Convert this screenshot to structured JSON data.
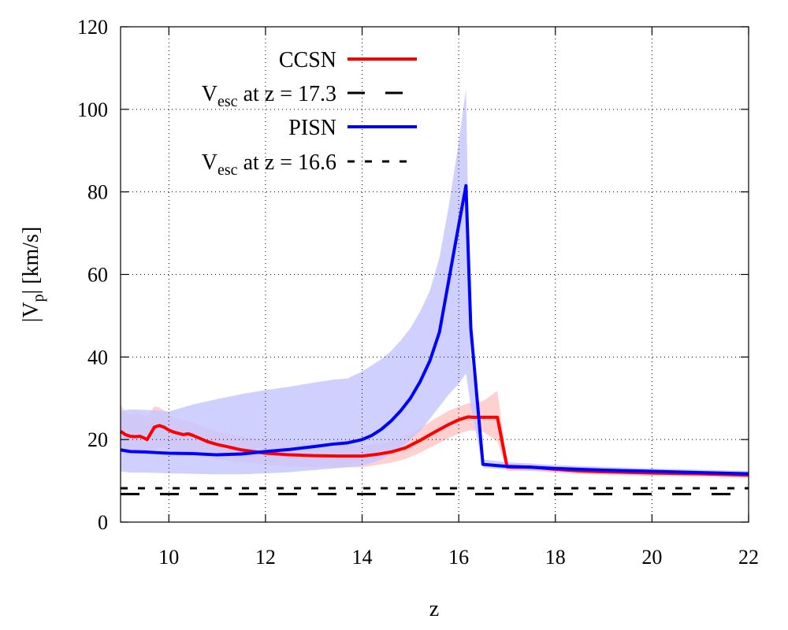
{
  "chart_data": {
    "type": "line",
    "xlabel": "z",
    "ylabel": {
      "base": "|V",
      "sub": "p",
      "rest": "| [km/s]"
    },
    "xlim": [
      9,
      22
    ],
    "ylim": [
      0,
      120
    ],
    "xticks": [
      10,
      12,
      14,
      16,
      18,
      20,
      22
    ],
    "yticks": [
      0,
      20,
      40,
      60,
      80,
      100,
      120
    ],
    "legend_position": "top-center",
    "series": [
      {
        "name": "CCSN",
        "legend": {
          "base": "CCSN",
          "sub": "",
          "rest": ""
        },
        "style": "solid",
        "color": "#ff0000",
        "band_color": "#ffc8c8",
        "x": [
          9.0,
          9.1,
          9.2,
          9.3,
          9.4,
          9.5,
          9.55,
          9.6,
          9.7,
          9.8,
          9.9,
          10.0,
          10.1,
          10.2,
          10.3,
          10.4,
          10.5,
          10.6,
          10.8,
          11.0,
          11.2,
          11.5,
          12.0,
          12.5,
          13.0,
          13.5,
          14.0,
          14.3,
          14.6,
          14.9,
          15.2,
          15.5,
          15.8,
          16.0,
          16.2,
          16.3,
          16.5,
          16.8,
          17.0,
          17.1,
          17.5,
          18.0,
          18.5,
          19.0,
          20.0,
          21.0,
          22.0
        ],
        "y": [
          22.0,
          21.2,
          20.8,
          20.7,
          20.8,
          20.3,
          20.0,
          21.0,
          23.0,
          23.4,
          23.0,
          22.3,
          21.8,
          21.5,
          21.2,
          21.4,
          21.0,
          20.5,
          19.5,
          18.8,
          18.3,
          17.5,
          16.7,
          16.3,
          16.1,
          16.0,
          16.0,
          16.4,
          17.0,
          18.0,
          19.8,
          21.8,
          23.7,
          24.8,
          25.5,
          25.4,
          25.4,
          25.4,
          13.4,
          13.3,
          13.3,
          12.8,
          12.4,
          12.2,
          11.9,
          11.7,
          11.4
        ],
        "upper": [
          28.5,
          26.5,
          26.0,
          26.5,
          26.2,
          25.8,
          25.6,
          26.5,
          28.0,
          27.8,
          27.0,
          26.0,
          25.5,
          25.0,
          24.6,
          24.6,
          24.2,
          23.6,
          22.8,
          22.0,
          21.5,
          20.8,
          20.0,
          19.6,
          19.2,
          18.9,
          18.6,
          18.9,
          19.7,
          20.8,
          22.8,
          25.0,
          27.0,
          28.0,
          28.8,
          28.8,
          29.3,
          31.8,
          14.4,
          14.2,
          14.2,
          13.6,
          13.2,
          12.9,
          12.6,
          12.4,
          12.1
        ],
        "lower": [
          16.5,
          16.5,
          16.5,
          16.5,
          16.6,
          16.4,
          16.2,
          16.6,
          17.6,
          18.0,
          18.0,
          17.6,
          17.4,
          17.2,
          17.0,
          17.0,
          16.8,
          16.5,
          15.8,
          15.3,
          14.9,
          14.4,
          13.9,
          13.5,
          13.3,
          13.2,
          13.3,
          13.8,
          14.4,
          15.3,
          16.8,
          18.6,
          20.4,
          21.4,
          22.2,
          22.2,
          21.9,
          19.6,
          12.4,
          12.4,
          12.4,
          12.0,
          11.7,
          11.5,
          11.2,
          11.0,
          10.7
        ]
      },
      {
        "name": "Vesc at z = 17.3",
        "legend": {
          "base": "V",
          "sub": "esc",
          "rest": " at z = 17.3"
        },
        "style": "long-dash",
        "color": "#000000",
        "x": [
          9.0,
          22.0
        ],
        "y": [
          6.8,
          6.8
        ]
      },
      {
        "name": "PISN",
        "legend": {
          "base": "PISN",
          "sub": "",
          "rest": ""
        },
        "style": "solid",
        "color": "#0000ff",
        "band_color": "#c8c8ff",
        "x": [
          9.0,
          9.2,
          9.5,
          9.8,
          10.0,
          10.5,
          11.0,
          11.5,
          12.0,
          12.5,
          13.0,
          13.4,
          13.7,
          14.0,
          14.2,
          14.4,
          14.6,
          14.8,
          15.0,
          15.2,
          15.4,
          15.6,
          15.8,
          16.0,
          16.15,
          16.25,
          16.5,
          17.0,
          17.5,
          18.0,
          19.0,
          20.0,
          21.0,
          22.0
        ],
        "y": [
          17.5,
          17.1,
          17.0,
          16.8,
          16.7,
          16.6,
          16.3,
          16.5,
          17.1,
          17.6,
          18.3,
          18.9,
          19.2,
          20.0,
          21.0,
          22.5,
          24.5,
          27.0,
          30.0,
          34.0,
          39.0,
          46.0,
          59.0,
          72.0,
          81.5,
          47.0,
          14.0,
          13.5,
          13.3,
          13.0,
          12.6,
          12.3,
          12.0,
          11.7
        ],
        "upper": [
          27.0,
          27.3,
          27.2,
          27.0,
          26.8,
          28.5,
          29.8,
          31.0,
          32.0,
          32.8,
          33.8,
          34.5,
          34.8,
          36.5,
          38.0,
          39.5,
          41.5,
          44.0,
          47.0,
          51.0,
          56.0,
          64.0,
          77.0,
          92.0,
          105.0,
          40.0,
          15.2,
          14.5,
          14.2,
          13.8,
          13.4,
          13.0,
          12.7,
          12.4
        ],
        "lower": [
          12.3,
          12.0,
          12.0,
          11.9,
          11.8,
          11.7,
          11.6,
          11.6,
          11.8,
          12.1,
          12.6,
          13.0,
          13.3,
          13.7,
          14.3,
          15.2,
          16.5,
          18.0,
          20.0,
          22.0,
          25.0,
          28.0,
          31.0,
          33.5,
          36.0,
          28.0,
          13.2,
          12.7,
          12.5,
          12.2,
          11.9,
          11.6,
          11.3,
          11.0
        ]
      },
      {
        "name": "Vesc at z = 16.6",
        "legend": {
          "base": "V",
          "sub": "esc",
          "rest": " at z = 16.6"
        },
        "style": "short-dash",
        "color": "#000000",
        "x": [
          9.0,
          22.0
        ],
        "y": [
          8.2,
          8.2
        ]
      }
    ]
  }
}
